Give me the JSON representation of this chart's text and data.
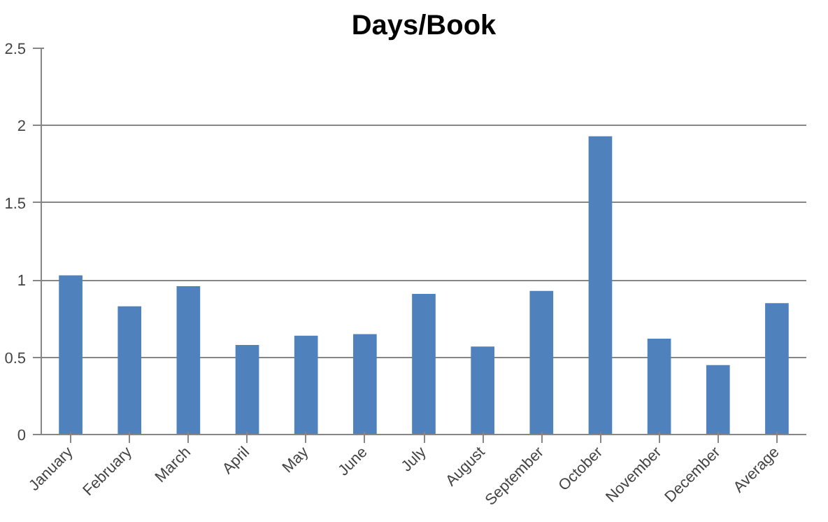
{
  "chart_data": {
    "type": "bar",
    "title": "Days/Book",
    "categories": [
      "January",
      "February",
      "March",
      "April",
      "May",
      "June",
      "July",
      "August",
      "September",
      "October",
      "November",
      "December",
      "Average"
    ],
    "values": [
      1.03,
      0.83,
      0.96,
      0.58,
      0.64,
      0.65,
      0.91,
      0.57,
      0.93,
      1.93,
      0.62,
      0.45,
      0.85
    ],
    "color": "#4f81bd",
    "ylim": [
      0,
      2.5
    ],
    "yticks": [
      0,
      0.5,
      1,
      1.5,
      2,
      2.5
    ],
    "grid": "y"
  }
}
